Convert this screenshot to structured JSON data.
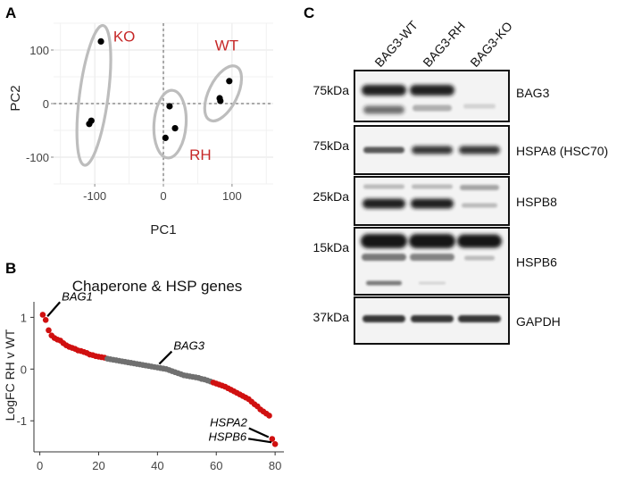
{
  "figure": {
    "panels": {
      "a": "A",
      "b": "B",
      "c": "C"
    }
  },
  "chart_data": [
    {
      "type": "scatter",
      "panel": "A",
      "title": "",
      "xlabel": "PC1",
      "ylabel": "PC2",
      "xlim": [
        -160,
        160
      ],
      "ylim": [
        -150,
        150
      ],
      "xticks": [
        -100,
        0,
        100
      ],
      "yticks": [
        -100,
        0,
        100
      ],
      "xtick_labels": [
        "-100",
        "0",
        "100"
      ],
      "ytick_labels": [
        "-100",
        "0",
        "100"
      ],
      "grid": true,
      "reference_lines": {
        "x": 0,
        "y": 0,
        "style": "dashed"
      },
      "groups": [
        {
          "name": "KO",
          "color": "#c62828",
          "points": [
            [
              -91,
              116
            ],
            [
              -105,
              -32
            ],
            [
              -108,
              -38
            ]
          ]
        },
        {
          "name": "RH",
          "color": "#c62828",
          "points": [
            [
              9,
              -5
            ],
            [
              17,
              -46
            ],
            [
              3,
              -64
            ]
          ]
        },
        {
          "name": "WT",
          "color": "#c62828",
          "points": [
            [
              96,
              42
            ],
            [
              82,
              10
            ],
            [
              83,
              5
            ]
          ]
        }
      ]
    },
    {
      "type": "scatter",
      "panel": "B",
      "title": "Chaperone & HSP genes",
      "xlabel": "",
      "ylabel": "LogFC RH v WT",
      "xlim": [
        -2,
        83
      ],
      "ylim": [
        -1.6,
        1.3
      ],
      "xticks": [
        0,
        20,
        40,
        60,
        80
      ],
      "yticks": [
        -1,
        0,
        1
      ],
      "xtick_labels": [
        "0",
        "20",
        "40",
        "60",
        "80"
      ],
      "ytick_labels": [
        "-1",
        "0",
        "1"
      ],
      "grid": false,
      "color_significant": "#d01010",
      "color_nonsignificant": "#707070",
      "y": [
        1.05,
        0.95,
        0.75,
        0.65,
        0.6,
        0.57,
        0.55,
        0.5,
        0.46,
        0.43,
        0.41,
        0.39,
        0.36,
        0.35,
        0.33,
        0.31,
        0.28,
        0.27,
        0.25,
        0.24,
        0.23,
        0.22,
        0.2,
        0.19,
        0.18,
        0.17,
        0.16,
        0.15,
        0.14,
        0.13,
        0.12,
        0.11,
        0.1,
        0.09,
        0.08,
        0.07,
        0.06,
        0.05,
        0.04,
        0.03,
        0.02,
        0.01,
        0.0,
        -0.02,
        -0.04,
        -0.06,
        -0.08,
        -0.1,
        -0.12,
        -0.13,
        -0.14,
        -0.15,
        -0.16,
        -0.17,
        -0.19,
        -0.2,
        -0.22,
        -0.24,
        -0.26,
        -0.28,
        -0.3,
        -0.32,
        -0.34,
        -0.37,
        -0.4,
        -0.43,
        -0.46,
        -0.49,
        -0.52,
        -0.55,
        -0.58,
        -0.63,
        -0.68,
        -0.72,
        -0.78,
        -0.82,
        -0.86,
        -0.9,
        -1.35,
        -1.45
      ],
      "significant": [
        1,
        1,
        1,
        1,
        1,
        1,
        1,
        1,
        1,
        1,
        1,
        1,
        1,
        1,
        1,
        1,
        1,
        1,
        1,
        1,
        1,
        1,
        0,
        0,
        0,
        0,
        0,
        0,
        0,
        0,
        0,
        0,
        0,
        0,
        0,
        0,
        0,
        0,
        0,
        0,
        0,
        0,
        0,
        0,
        0,
        0,
        0,
        0,
        0,
        0,
        0,
        0,
        0,
        0,
        0,
        0,
        0,
        0,
        1,
        1,
        1,
        1,
        1,
        1,
        1,
        1,
        1,
        1,
        1,
        1,
        1,
        1,
        1,
        1,
        1,
        1,
        1,
        1,
        1,
        1
      ],
      "annotations": [
        {
          "label": "BAG1",
          "index": 2
        },
        {
          "label": "BAG3",
          "index": 40
        },
        {
          "label": "HSPA2",
          "index": 79
        },
        {
          "label": "HSPB6",
          "index": 80
        }
      ]
    }
  ],
  "blot": {
    "lanes": [
      "BAG3-WT",
      "BAG3-RH",
      "BAG3-KO"
    ],
    "rows": [
      {
        "marker": "75kDa",
        "protein": "BAG3"
      },
      {
        "marker": "75kDa",
        "protein": "HSPA8 (HSC70)"
      },
      {
        "marker": "25kDa",
        "protein": "HSPB8"
      },
      {
        "marker": "15kDa",
        "protein": "HSPB6"
      },
      {
        "marker": "37kDa",
        "protein": "GAPDH"
      }
    ]
  }
}
